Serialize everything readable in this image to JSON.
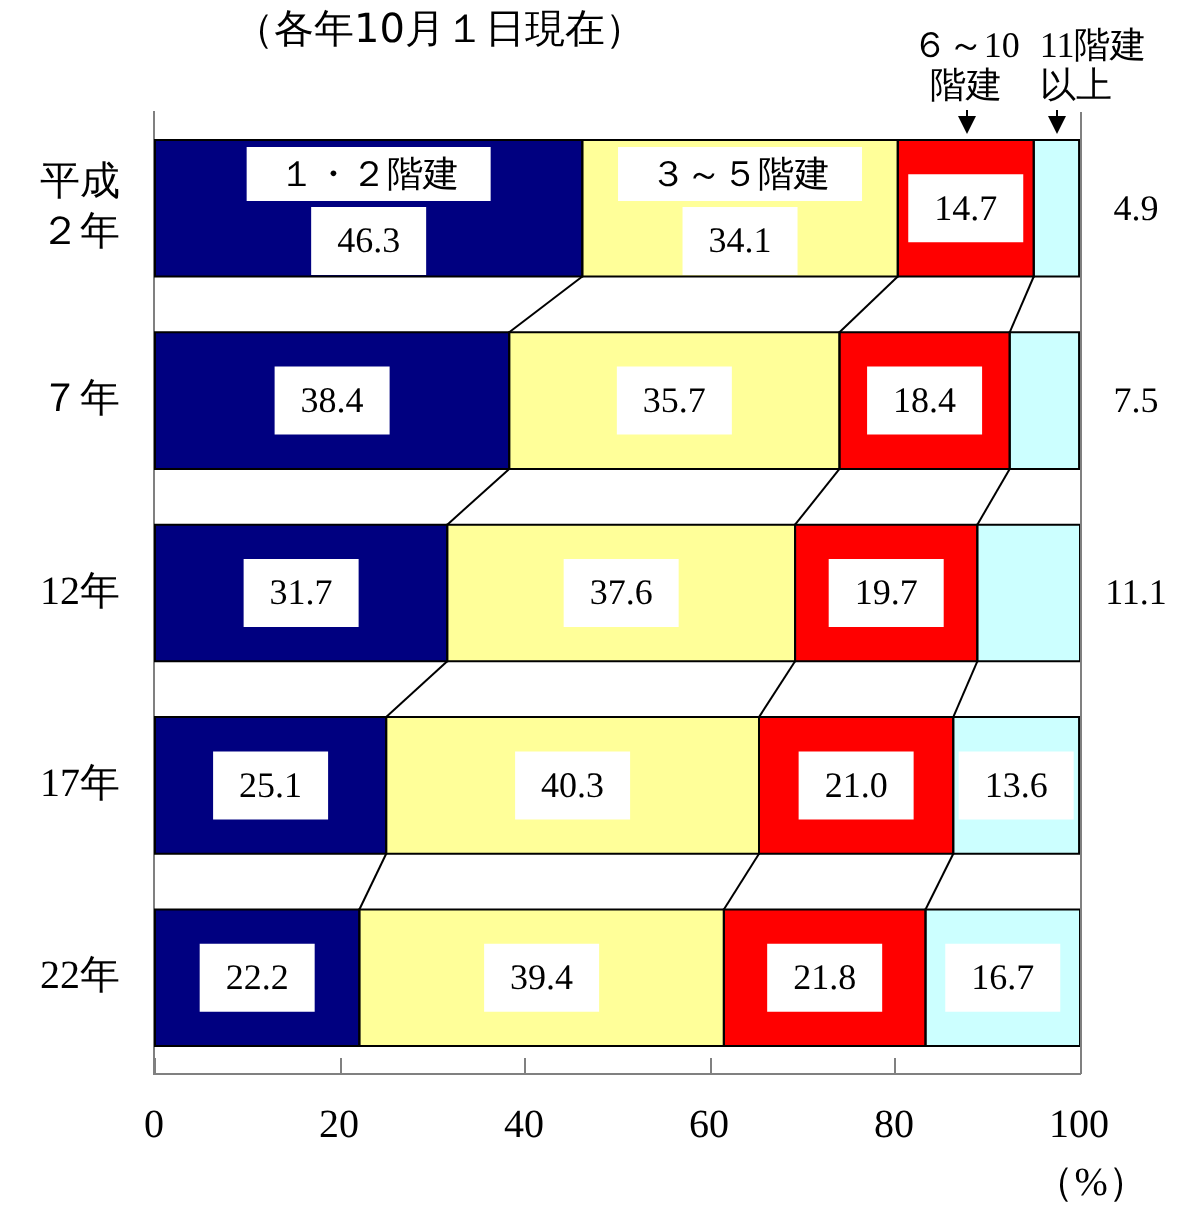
{
  "chart_data": {
    "type": "bar",
    "orientation": "horizontal",
    "stacked": true,
    "title": "（各年10月１日現在）",
    "xlabel": "（%）",
    "categories": [
      "平成２年",
      "７年",
      "12年",
      "17年",
      "22年"
    ],
    "series": [
      {
        "name": "１・２階建",
        "color": "#000080",
        "values": [
          46.3,
          38.4,
          31.7,
          25.1,
          22.2
        ],
        "value_labels": [
          "46.3",
          "38.4",
          "31.7",
          "25.1",
          "22.2"
        ]
      },
      {
        "name": "３～５階建",
        "color": "#ffff99",
        "values": [
          34.1,
          35.7,
          37.6,
          40.3,
          39.4
        ],
        "value_labels": [
          "34.1",
          "35.7",
          "37.6",
          "40.3",
          "39.4"
        ]
      },
      {
        "name": "６～10階建",
        "color": "#ff0000",
        "values": [
          14.7,
          18.4,
          19.7,
          21.0,
          21.8
        ],
        "value_labels": [
          "14.7",
          "18.4",
          "19.7",
          "21.0",
          "21.8"
        ]
      },
      {
        "name": "11階建以上",
        "color": "#ccffff",
        "values": [
          4.9,
          7.5,
          11.1,
          13.6,
          16.7
        ],
        "value_labels": [
          "4.9",
          "7.5",
          "11.1",
          "13.6",
          "16.7"
        ]
      }
    ],
    "xlim": [
      0,
      100.1
    ],
    "xticks": [
      0,
      20,
      40,
      60,
      80,
      100
    ]
  }
}
